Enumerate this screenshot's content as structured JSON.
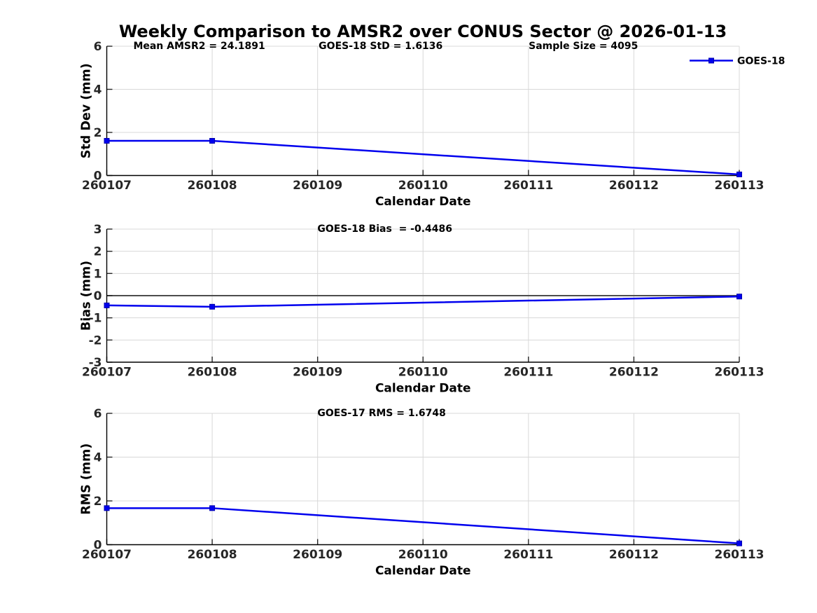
{
  "figure": {
    "title": "Weekly Comparison to AMSR2 over CONUS Sector @ 2026-01-13"
  },
  "colors": {
    "series_line": "#0000ee",
    "marker_fill": "#0000ee",
    "marker_edge": "#0000b0",
    "grid": "#d8d8d8",
    "spine": "#000000",
    "tick": "#262626",
    "tick_label": "#262626",
    "zero_line": "#4d4d4d",
    "text": "#000000"
  },
  "chart_data": [
    {
      "type": "line",
      "ylabel": "Std Dev (mm)",
      "xlabel": "Calendar Date",
      "x": [
        "260107",
        "260108",
        "260109",
        "260110",
        "260111",
        "260112",
        "260113"
      ],
      "ylim": [
        0,
        6
      ],
      "yticks": [
        0,
        2,
        4,
        6
      ],
      "grid": true,
      "zero_line": false,
      "annotations": [
        "Mean AMSR2 = 24.1891",
        "GOES-18 StD = 1.6136",
        "Sample Size = 4095"
      ],
      "legend": {
        "show": true,
        "label": "GOES-18",
        "position": "top-right"
      },
      "series": [
        {
          "name": "GOES-18",
          "points": [
            {
              "x": "260107",
              "y": 1.61
            },
            {
              "x": "260108",
              "y": 1.61
            },
            {
              "x": "260113",
              "y": 0.05
            }
          ]
        }
      ]
    },
    {
      "type": "line",
      "ylabel": "Bias (mm)",
      "xlabel": "Calendar Date",
      "x": [
        "260107",
        "260108",
        "260109",
        "260110",
        "260111",
        "260112",
        "260113"
      ],
      "ylim": [
        -3,
        3
      ],
      "yticks": [
        -3,
        -2,
        -1,
        0,
        1,
        2,
        3
      ],
      "grid": true,
      "zero_line": true,
      "annotations": [
        "GOES-18 Bias  = -0.4486"
      ],
      "legend": {
        "show": false,
        "label": "GOES-18",
        "position": "top-right"
      },
      "series": [
        {
          "name": "GOES-18",
          "points": [
            {
              "x": "260107",
              "y": -0.44
            },
            {
              "x": "260108",
              "y": -0.5
            },
            {
              "x": "260113",
              "y": -0.04
            }
          ]
        }
      ]
    },
    {
      "type": "line",
      "ylabel": "RMS (mm)",
      "xlabel": "Calendar Date",
      "x": [
        "260107",
        "260108",
        "260109",
        "260110",
        "260111",
        "260112",
        "260113"
      ],
      "ylim": [
        0,
        6
      ],
      "yticks": [
        0,
        2,
        4,
        6
      ],
      "grid": true,
      "zero_line": false,
      "annotations": [
        "GOES-17 RMS = 1.6748"
      ],
      "legend": {
        "show": false,
        "label": "GOES-18",
        "position": "top-right"
      },
      "series": [
        {
          "name": "GOES-18",
          "points": [
            {
              "x": "260107",
              "y": 1.67
            },
            {
              "x": "260108",
              "y": 1.67
            },
            {
              "x": "260113",
              "y": 0.06
            }
          ]
        }
      ]
    }
  ]
}
